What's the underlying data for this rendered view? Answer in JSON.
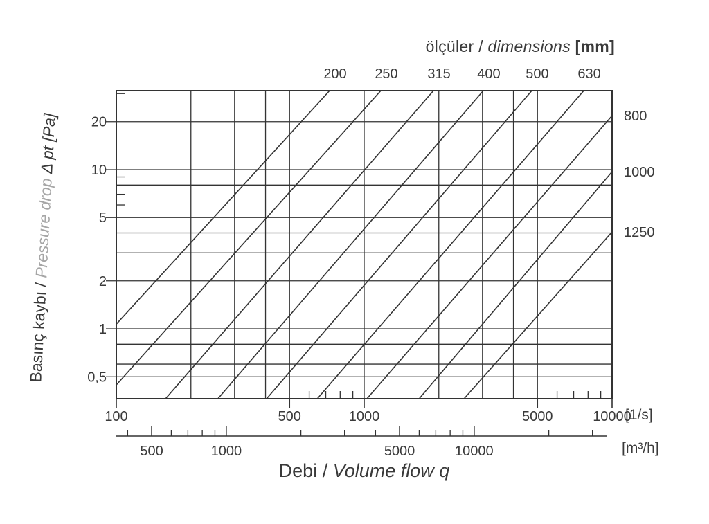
{
  "header": {
    "title_tr": "ölçüler /",
    "title_en": "dimensions",
    "title_unit": "[mm]"
  },
  "x_axis_title": {
    "tr": "Debi /",
    "en": "Volume flow q"
  },
  "y_axis_title": {
    "tr": "Basınç kaybı /",
    "en": "Pressure drop",
    "symbol": "Δ pt [Pa]"
  },
  "units": {
    "primary": "[1/s]",
    "secondary": "[m³/h]"
  },
  "colors": {
    "line": "#333333",
    "text": "#3a3a3a",
    "muted_text": "#a6a6a6"
  },
  "chart_data": {
    "type": "line",
    "title": "ölçüler / dimensions [mm]",
    "xlabel": "Debi / Volume flow q",
    "ylabel": "Basınç kaybı / Pressure drop Δ pt [Pa]",
    "grid": true,
    "legend_position": "labels-on-lines",
    "x_axis": {
      "scale": "log",
      "range": [
        100,
        10000
      ],
      "unit": "1/s",
      "tick_values": [
        100,
        500,
        1000,
        5000,
        10000
      ],
      "tick_labels": [
        "100",
        "500",
        "1000",
        "5000",
        "10000"
      ],
      "gridlines": [
        200,
        300,
        400,
        500,
        1000,
        2000,
        3000,
        4000,
        5000
      ],
      "minor_ticks": [
        600,
        700,
        800,
        900,
        6000,
        7000,
        8000,
        9000
      ]
    },
    "y_axis": {
      "scale": "log",
      "range": [
        0.364,
        31.3
      ],
      "unit": "Pa",
      "tick_values": [
        20,
        10,
        5,
        2,
        1,
        0.5
      ],
      "tick_labels": [
        "20",
        "10",
        "5",
        "2",
        "1",
        "0,5"
      ],
      "gridlines": [
        20,
        10,
        8,
        5,
        4,
        3,
        2,
        1,
        0.8,
        0.6,
        0.5
      ],
      "minor_ticks": [
        30,
        9,
        7,
        6
      ]
    },
    "x_axis_secondary": {
      "scale": "log",
      "unit": "m³/h",
      "conversion_factor_to_primary": 3.6,
      "tick_values": [
        500,
        1000,
        5000,
        10000
      ],
      "tick_labels": [
        "500",
        "1000",
        "5000",
        "10000"
      ],
      "minor_ticks": [
        400,
        600,
        700,
        800,
        900,
        2000,
        3000,
        4000,
        6000,
        7000,
        8000,
        9000,
        20000,
        30000
      ]
    },
    "series": [
      {
        "name": "200",
        "label_side": "top",
        "points": [
          [
            100,
            1.07
          ],
          [
            725,
            31.3
          ]
        ]
      },
      {
        "name": "250",
        "label_side": "top",
        "points": [
          [
            100,
            0.444
          ],
          [
            1167,
            31.3
          ]
        ]
      },
      {
        "name": "315",
        "label_side": "top",
        "points": [
          [
            158,
            0.364
          ],
          [
            1903,
            31.3
          ]
        ]
      },
      {
        "name": "400",
        "label_side": "top",
        "points": [
          [
            257,
            0.364
          ],
          [
            3023,
            31.3
          ]
        ]
      },
      {
        "name": "500",
        "label_side": "top",
        "points": [
          [
            404,
            0.364
          ],
          [
            4742,
            31.3
          ]
        ]
      },
      {
        "name": "630",
        "label_side": "top",
        "points": [
          [
            647,
            0.364
          ],
          [
            7685,
            31.3
          ]
        ]
      },
      {
        "name": "800",
        "label_side": "right",
        "points": [
          [
            1026,
            0.364
          ],
          [
            10000,
            21.8
          ]
        ]
      },
      {
        "name": "1000",
        "label_side": "right",
        "points": [
          [
            1666,
            0.364
          ],
          [
            10000,
            9.7
          ]
        ]
      },
      {
        "name": "1250",
        "label_side": "right",
        "points": [
          [
            2528,
            0.364
          ],
          [
            10000,
            4.06
          ]
        ]
      }
    ]
  }
}
